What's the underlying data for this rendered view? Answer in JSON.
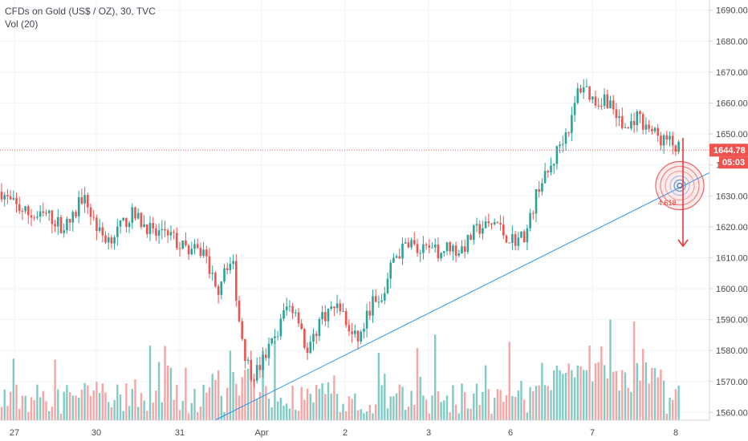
{
  "legend": {
    "symbol": "CFDs on Gold (US$ / OZ), 30, TVC",
    "indicator": "Vol (20)"
  },
  "colors": {
    "up": "#26a69a",
    "down": "#ef5350",
    "up_volume": "#80cbc4",
    "down_volume": "#f6a5a5",
    "price_line": "#ef5350",
    "trendline": "#2196f3",
    "badge_bg": "#ef5350",
    "arrow": "#e53935"
  },
  "chart_data": {
    "type": "candlestick",
    "title": "CFDs on Gold (US$ / OZ), 30, TVC",
    "y_axis": {
      "ticks": [
        1690,
        1680,
        1670,
        1660,
        1650,
        1640,
        1630,
        1620,
        1610,
        1600,
        1590,
        1580,
        1570,
        1560
      ],
      "tick_labels": [
        "1690.00",
        "1680.00",
        "1670.00",
        "1660.00",
        "1650.00",
        "1640.00",
        "1630.00",
        "1620.00",
        "1610.00",
        "1600.00",
        "1590.00",
        "1580.00",
        "1570.00",
        "1560.00"
      ],
      "range": [
        1557.5,
        1693.3
      ]
    },
    "x_axis": {
      "labels": [
        "27",
        "30",
        "31",
        "Apr",
        "2",
        "3",
        "6",
        "7",
        "8"
      ]
    },
    "current_price": 1644.78,
    "current_price_label": "1644.78",
    "countdown_label": "05:03",
    "price_path": [
      [
        0,
        1632
      ],
      [
        12,
        1628
      ],
      [
        24,
        1626
      ],
      [
        36,
        1624
      ],
      [
        48,
        1623
      ],
      [
        58,
        1624
      ],
      [
        68,
        1622
      ],
      [
        78,
        1620
      ],
      [
        86,
        1621
      ],
      [
        94,
        1624
      ],
      [
        100,
        1630
      ],
      [
        107,
        1628
      ],
      [
        114,
        1624
      ],
      [
        124,
        1618
      ],
      [
        134,
        1616
      ],
      [
        144,
        1618
      ],
      [
        154,
        1621
      ],
      [
        164,
        1624
      ],
      [
        174,
        1622
      ],
      [
        184,
        1620
      ],
      [
        194,
        1617
      ],
      [
        204,
        1620
      ],
      [
        212,
        1618
      ],
      [
        222,
        1614
      ],
      [
        232,
        1613
      ],
      [
        244,
        1612
      ],
      [
        254,
        1612
      ],
      [
        262,
        1606
      ],
      [
        270,
        1598
      ],
      [
        280,
        1608
      ],
      [
        290,
        1608
      ],
      [
        298,
        1590
      ],
      [
        306,
        1578
      ],
      [
        314,
        1572
      ],
      [
        322,
        1574
      ],
      [
        330,
        1578
      ],
      [
        338,
        1582
      ],
      [
        346,
        1586
      ],
      [
        356,
        1594
      ],
      [
        366,
        1594
      ],
      [
        374,
        1590
      ],
      [
        382,
        1578
      ],
      [
        390,
        1583
      ],
      [
        398,
        1590
      ],
      [
        406,
        1592
      ],
      [
        416,
        1594
      ],
      [
        424,
        1594
      ],
      [
        432,
        1588
      ],
      [
        440,
        1584
      ],
      [
        448,
        1584
      ],
      [
        456,
        1590
      ],
      [
        464,
        1596
      ],
      [
        474,
        1594
      ],
      [
        482,
        1602
      ],
      [
        490,
        1610
      ],
      [
        500,
        1612
      ],
      [
        510,
        1616
      ],
      [
        520,
        1612
      ],
      [
        530,
        1612
      ],
      [
        540,
        1612
      ],
      [
        550,
        1612
      ],
      [
        560,
        1614
      ],
      [
        570,
        1612
      ],
      [
        580,
        1614
      ],
      [
        590,
        1618
      ],
      [
        600,
        1620
      ],
      [
        610,
        1620
      ],
      [
        618,
        1622
      ],
      [
        626,
        1618
      ],
      [
        636,
        1616
      ],
      [
        646,
        1616
      ],
      [
        656,
        1618
      ],
      [
        664,
        1626
      ],
      [
        672,
        1634
      ],
      [
        680,
        1636
      ],
      [
        688,
        1640
      ],
      [
        696,
        1646
      ],
      [
        704,
        1650
      ],
      [
        712,
        1654
      ],
      [
        720,
        1664
      ],
      [
        728,
        1666
      ],
      [
        736,
        1662
      ],
      [
        744,
        1660
      ],
      [
        752,
        1662
      ],
      [
        760,
        1660
      ],
      [
        768,
        1656
      ],
      [
        776,
        1652
      ],
      [
        784,
        1652
      ],
      [
        792,
        1656
      ],
      [
        800,
        1654
      ],
      [
        808,
        1652
      ],
      [
        816,
        1650
      ],
      [
        824,
        1648
      ],
      [
        832,
        1648
      ],
      [
        840,
        1646
      ],
      [
        846,
        1645
      ]
    ],
    "volume_max_units": 15,
    "fib_labels": [
      "4.618"
    ],
    "grid": true,
    "legend": "top-left"
  }
}
